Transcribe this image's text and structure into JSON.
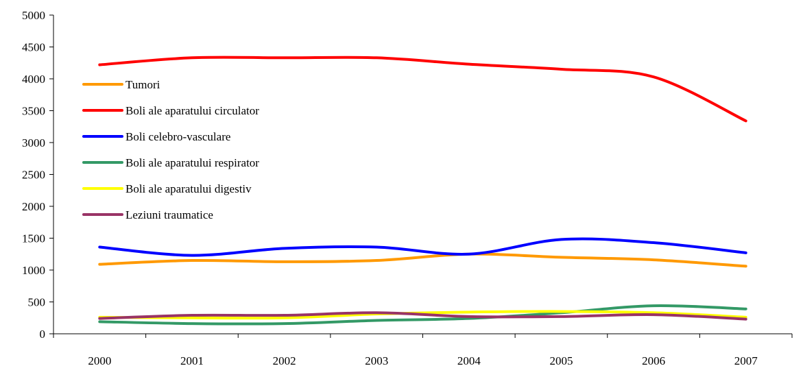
{
  "chart_data": {
    "type": "line",
    "title": "",
    "xlabel": "",
    "ylabel": "",
    "categories": [
      "2000",
      "2001",
      "2002",
      "2003",
      "2004",
      "2005",
      "2006",
      "2007"
    ],
    "ylim": [
      0,
      5000
    ],
    "yticks": [
      0,
      500,
      1000,
      1500,
      2000,
      2500,
      3000,
      3500,
      4000,
      4500,
      5000
    ],
    "grid": false,
    "legend_position": "upper-left inside plot",
    "series": [
      {
        "name": "Tumori",
        "color": "#FF9900",
        "values": [
          1090,
          1150,
          1130,
          1150,
          1250,
          1200,
          1160,
          1060
        ]
      },
      {
        "name": "Boli ale aparatului circulator",
        "color": "#FF0000",
        "values": [
          4220,
          4330,
          4330,
          4330,
          4230,
          4150,
          4030,
          3340
        ]
      },
      {
        "name": "Boli celebro-vasculare",
        "color": "#0000FF",
        "values": [
          1360,
          1230,
          1340,
          1360,
          1250,
          1480,
          1430,
          1270
        ]
      },
      {
        "name": "Boli ale aparatului respirator",
        "color": "#339966",
        "values": [
          190,
          160,
          160,
          210,
          240,
          330,
          440,
          390
        ]
      },
      {
        "name": "Boli ale aparatului digestiv",
        "color": "#FFFF00",
        "values": [
          260,
          250,
          250,
          310,
          340,
          350,
          330,
          260
        ]
      },
      {
        "name": "Leziuni traumatice",
        "color": "#993366",
        "values": [
          240,
          290,
          290,
          330,
          270,
          270,
          300,
          230
        ]
      }
    ]
  }
}
